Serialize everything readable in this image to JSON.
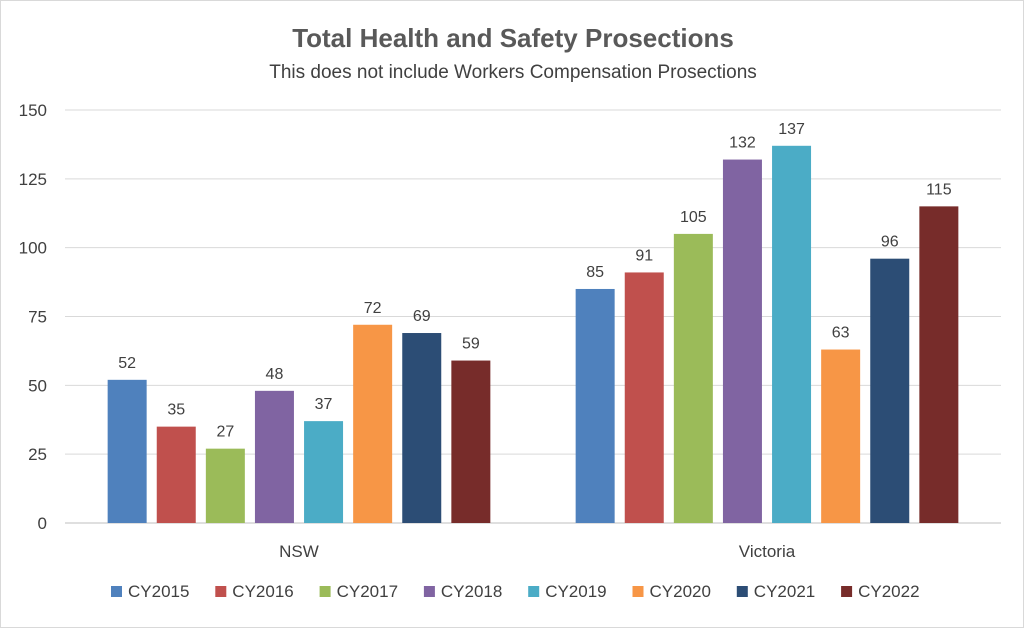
{
  "chart_data": {
    "type": "bar",
    "title": "Total Health and Safety Prosections",
    "subtitle": "This does not include Workers Compensation  Prosections",
    "categories": [
      "NSW",
      "Victoria"
    ],
    "ylim": [
      0,
      150
    ],
    "yticks": [
      0,
      25,
      50,
      75,
      100,
      125,
      150
    ],
    "grid": true,
    "legend_position": "bottom",
    "series": [
      {
        "name": "CY2015",
        "color": "#4f81bd",
        "values": [
          52,
          85
        ]
      },
      {
        "name": "CY2016",
        "color": "#c0504d",
        "values": [
          35,
          91
        ]
      },
      {
        "name": "CY2017",
        "color": "#9bbb59",
        "values": [
          27,
          105
        ]
      },
      {
        "name": "CY2018",
        "color": "#8064a2",
        "values": [
          48,
          132
        ]
      },
      {
        "name": "CY2019",
        "color": "#4bacc6",
        "values": [
          37,
          137
        ]
      },
      {
        "name": "CY2020",
        "color": "#f79646",
        "values": [
          72,
          63
        ]
      },
      {
        "name": "CY2021",
        "color": "#2c4d75",
        "values": [
          69,
          96
        ]
      },
      {
        "name": "CY2022",
        "color": "#772c2a",
        "values": [
          59,
          115
        ]
      }
    ]
  }
}
